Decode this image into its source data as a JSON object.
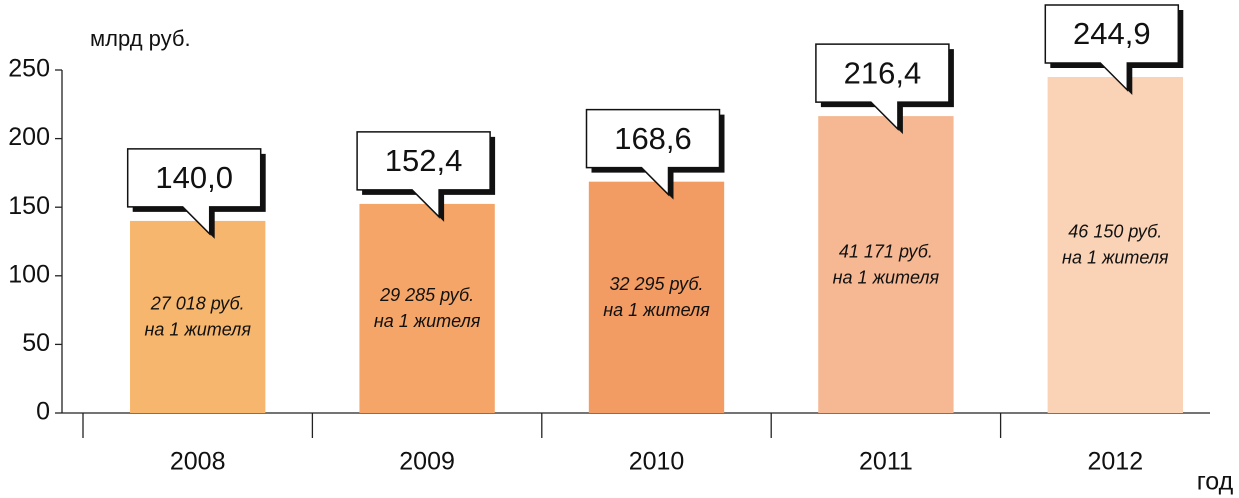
{
  "chart_data": {
    "type": "bar",
    "y_axis_label": "млрд руб.",
    "x_axis_label": "год",
    "categories": [
      "2008",
      "2009",
      "2010",
      "2011",
      "2012"
    ],
    "values": [
      140.0,
      152.4,
      168.6,
      216.4,
      244.9
    ],
    "value_labels": [
      "140,0",
      "152,4",
      "168,6",
      "216,4",
      "244,9"
    ],
    "colors": [
      "#f7b66d",
      "#f4a567",
      "#f29b62",
      "#f5b893",
      "#fad2b5"
    ],
    "notes": [
      [
        "27 018 руб.",
        "на 1 жителя"
      ],
      [
        "29 285 руб.",
        "на 1 жителя"
      ],
      [
        "32 295 руб.",
        "на 1 жителя"
      ],
      [
        "41 171 руб.",
        "на 1 жителя"
      ],
      [
        "46 150 руб.",
        "на 1 жителя"
      ]
    ],
    "ylim": [
      0,
      250
    ],
    "yticks": [
      0,
      50,
      100,
      150,
      200,
      250
    ]
  }
}
